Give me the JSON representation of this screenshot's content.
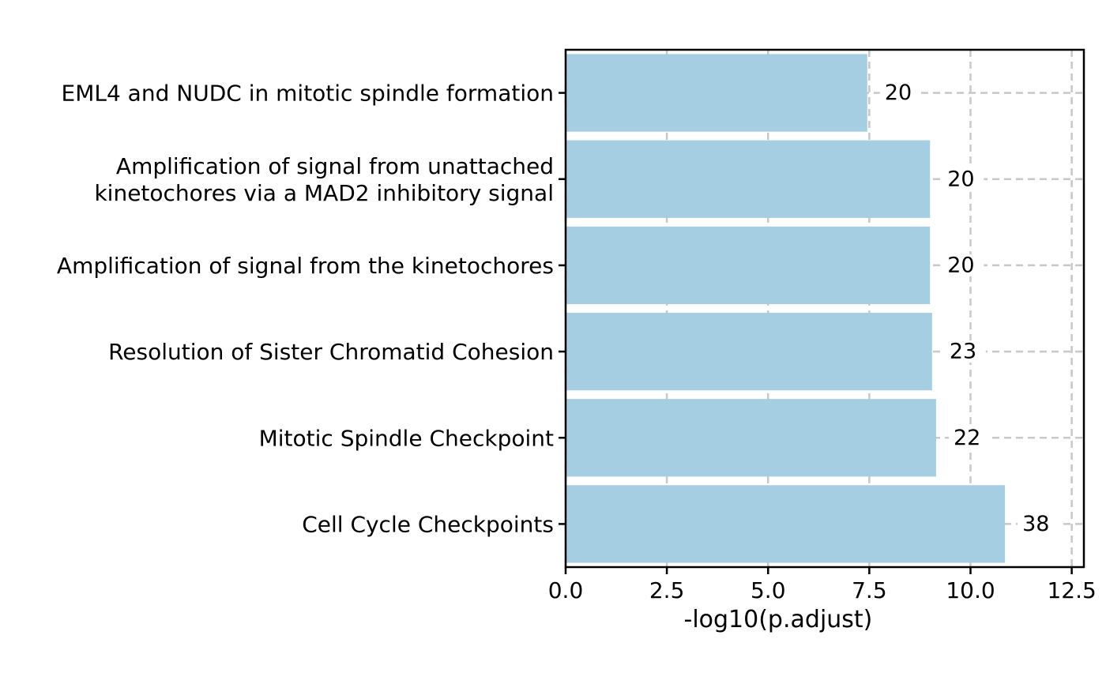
{
  "chart_data": {
    "type": "bar",
    "orientation": "horizontal",
    "categories": [
      [
        "EML4 and NUDC in mitotic spindle formation"
      ],
      [
        "Amplification of signal from unattached",
        "kinetochores via a MAD2 inhibitory signal"
      ],
      [
        "Amplification of signal from the kinetochores"
      ],
      [
        "Resolution of Sister Chromatid Cohesion"
      ],
      [
        "Mitotic Spindle Checkpoint"
      ],
      [
        "Cell Cycle Checkpoints"
      ]
    ],
    "values": [
      7.45,
      9.0,
      9.0,
      9.05,
      9.15,
      10.85
    ],
    "bar_labels": [
      "20",
      "20",
      "20",
      "23",
      "22",
      "38"
    ],
    "xlabel": "-log10(p.adjust)",
    "ylabel": "",
    "title": "",
    "xlim": [
      0,
      12.8
    ],
    "xticks": [
      0.0,
      2.5,
      5.0,
      7.5,
      10.0,
      12.5
    ],
    "xtick_labels": [
      "0.0",
      "2.5",
      "5.0",
      "7.5",
      "10.0",
      "12.5"
    ],
    "grid": true,
    "grid_style": "dashed",
    "legend": "none",
    "colors": {
      "bar": "#a6cee3",
      "grid": "#c8c8c8",
      "axis": "#000000",
      "text": "#000000"
    }
  }
}
